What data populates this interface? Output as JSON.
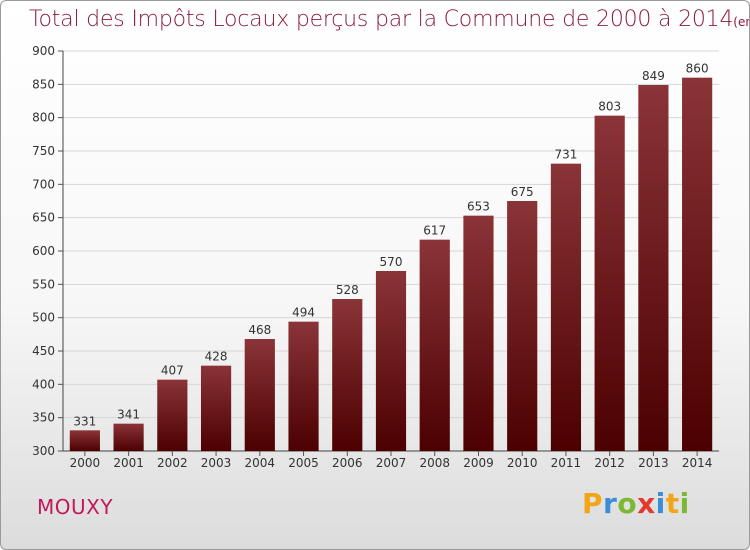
{
  "title": "Total des Impôts Locaux perçus par la Commune de 2000 à 2014",
  "unit_note": "(en milliers d'€)",
  "commune": "MOUXY",
  "logo": {
    "letters": [
      "P",
      "r",
      "o",
      "x",
      "i",
      "t",
      "i"
    ],
    "colors": [
      "#f2a516",
      "#3a8ed8",
      "#7cb833",
      "#e23a2e",
      "#3a8ed8",
      "#f2a516",
      "#7cb833"
    ]
  },
  "chart_data": {
    "type": "bar",
    "title": "Total des Impôts Locaux perçus par la Commune de 2000 à 2014",
    "xlabel": "",
    "ylabel": "",
    "categories": [
      "2000",
      "2001",
      "2002",
      "2003",
      "2004",
      "2005",
      "2006",
      "2007",
      "2008",
      "2009",
      "2010",
      "2011",
      "2012",
      "2013",
      "2014"
    ],
    "values": [
      331,
      341,
      407,
      428,
      468,
      494,
      528,
      570,
      617,
      653,
      675,
      731,
      803,
      849,
      860
    ],
    "ylim": [
      300,
      900
    ],
    "yticks": [
      300,
      350,
      400,
      450,
      500,
      550,
      600,
      650,
      700,
      750,
      800,
      850,
      900
    ],
    "grid": true,
    "bar_color_top": "#8a3438",
    "bar_color_bottom": "#4c0000"
  }
}
